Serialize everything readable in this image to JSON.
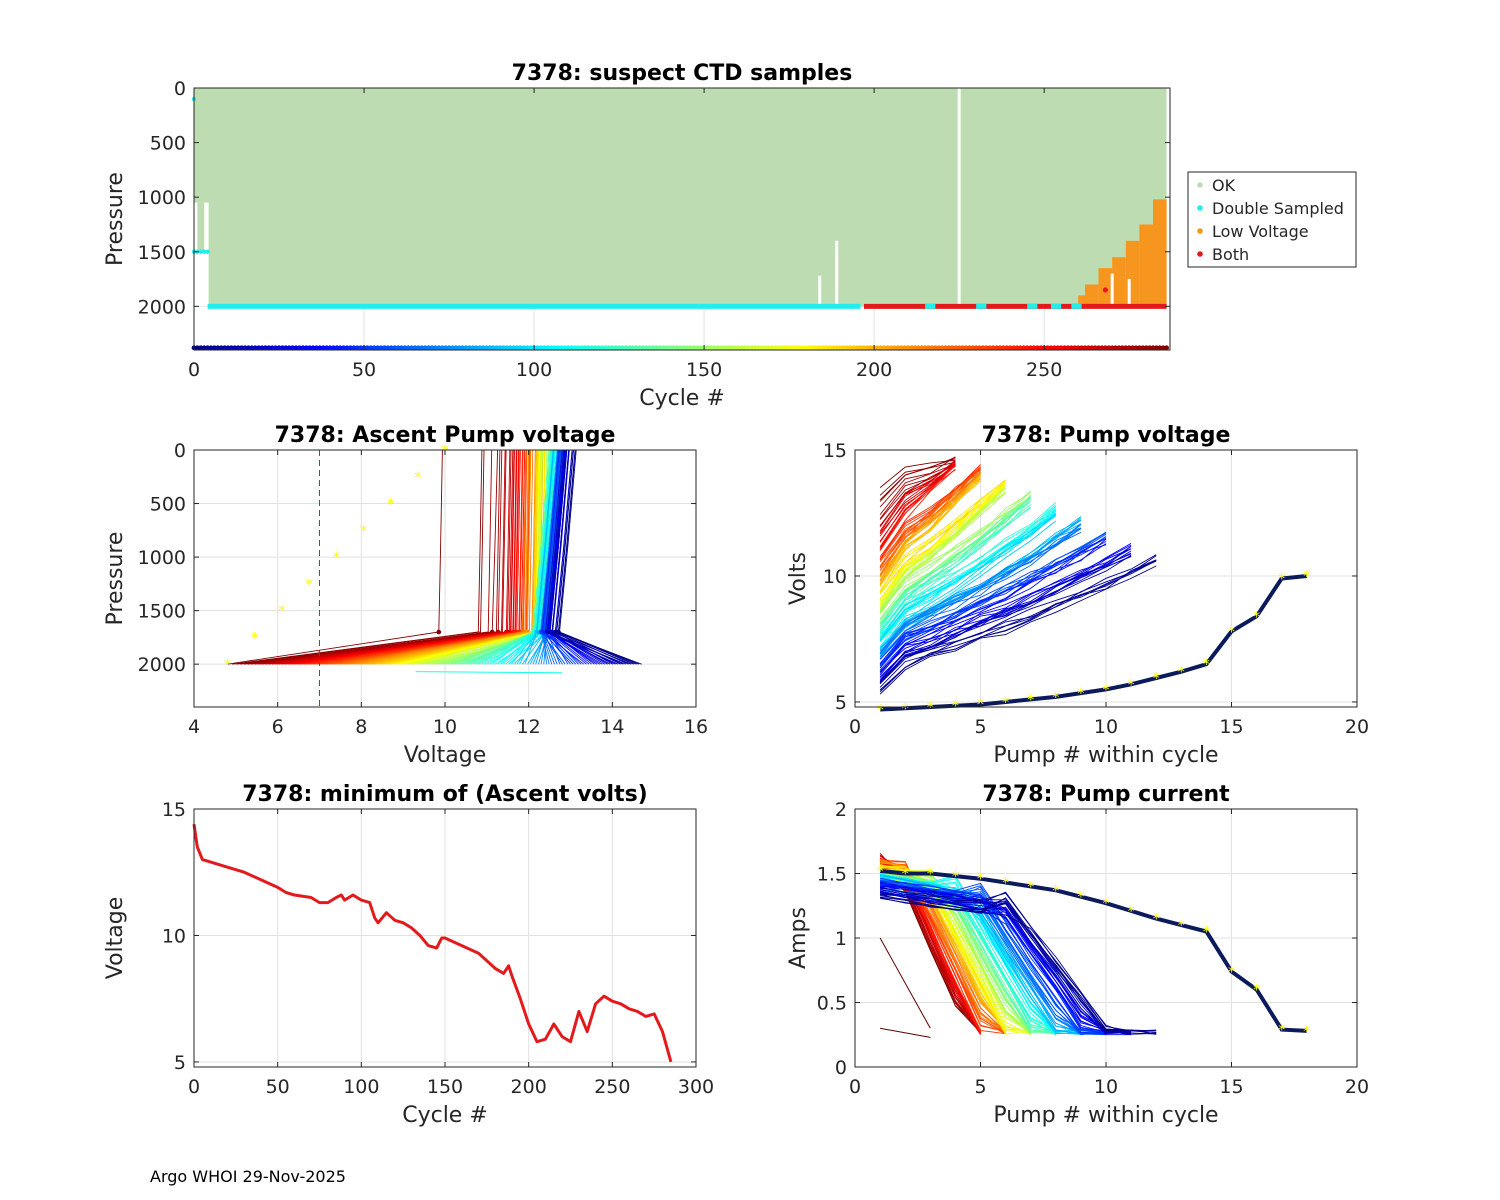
{
  "footer": "Argo WHOI 29-Nov-2025",
  "chart_data": [
    {
      "id": "ctd",
      "type": "scatter",
      "title": "7378: suspect CTD samples",
      "xlabel": "Cycle #",
      "ylabel": "Pressure",
      "xlim": [
        0,
        287
      ],
      "ylim": [
        0,
        2400
      ],
      "y_reversed": true,
      "grid": true,
      "xticks": [
        0,
        50,
        100,
        150,
        200,
        250
      ],
      "yticks": [
        0,
        500,
        1000,
        1500,
        2000
      ],
      "legend": {
        "placement": "right-outside",
        "entries": [
          {
            "label": "OK",
            "color": "#bddcb2"
          },
          {
            "label": "Double Sampled",
            "color": "#22eeee"
          },
          {
            "label": "Low Voltage",
            "color": "#f7961e"
          },
          {
            "label": "Both",
            "color": "#e31a1c"
          }
        ]
      },
      "ok_max_pressure": 2000,
      "gap_cycles": [
        {
          "cycle": 184,
          "top": 1720
        },
        {
          "cycle": 189,
          "top": 1400
        },
        {
          "cycle": 225,
          "top": 0
        }
      ],
      "double_sampled": {
        "shallow_cycles": [
          0,
          1,
          2,
          3,
          4
        ],
        "shallow_pressure": 1500,
        "deep_pressure": 2000,
        "deep_range": [
          4,
          196
        ]
      },
      "both": {
        "range": [
          197,
          286
        ],
        "pressure": 2000
      },
      "low_voltage": {
        "cycles": [
          262,
          266,
          270,
          274,
          278,
          282,
          286
        ],
        "tops": [
          1900,
          1800,
          1650,
          1550,
          1400,
          1250,
          1020
        ]
      },
      "cycle_color_bar_pressure": 2380
    },
    {
      "id": "ascent",
      "type": "line",
      "title": "7378: Ascent Pump voltage",
      "xlabel": "Voltage",
      "ylabel": "Pressure",
      "xlim": [
        4,
        16
      ],
      "ylim": [
        0,
        2400
      ],
      "y_reversed": true,
      "xticks": [
        4,
        6,
        8,
        10,
        12,
        14,
        16
      ],
      "yticks": [
        0,
        500,
        1000,
        1500,
        2000
      ],
      "threshold_voltage": 7,
      "threshold_color": "#e31a1c",
      "curves_count": 287,
      "start_voltage_range": [
        14.7,
        4.8
      ],
      "end_voltage_range": [
        13.0,
        10.0
      ],
      "start_pressure": 2000,
      "end_pressure": 0
    },
    {
      "id": "pumpv",
      "type": "line",
      "title": "7378: Pump voltage",
      "xlabel": "Pump # within cycle",
      "ylabel": "Volts",
      "xlim": [
        0,
        20
      ],
      "ylim": [
        4.8,
        15
      ],
      "xticks": [
        0,
        5,
        10,
        15,
        20
      ],
      "yticks": [
        5,
        10,
        15
      ],
      "highlight_series": {
        "name": "final cycle",
        "pump": [
          1,
          2,
          3,
          4,
          5,
          6,
          7,
          8,
          9,
          10,
          11,
          12,
          13,
          14,
          15,
          16,
          17,
          18
        ],
        "volts": [
          4.7,
          4.75,
          4.8,
          4.85,
          4.9,
          5.0,
          5.1,
          5.2,
          5.35,
          5.5,
          5.7,
          5.95,
          6.2,
          6.5,
          7.8,
          8.4,
          9.9,
          10.0
        ]
      }
    },
    {
      "id": "minvolts",
      "type": "line",
      "title": "7378: minimum of (Ascent volts)",
      "xlabel": "Cycle #",
      "ylabel": "Voltage",
      "xlim": [
        0,
        300
      ],
      "ylim": [
        4.8,
        15
      ],
      "xticks": [
        0,
        50,
        100,
        150,
        200,
        250,
        300
      ],
      "yticks": [
        5,
        10,
        15
      ],
      "color": "#e31a1c",
      "x": [
        0,
        2,
        5,
        10,
        20,
        30,
        40,
        50,
        55,
        60,
        70,
        75,
        80,
        85,
        88,
        90,
        95,
        100,
        105,
        108,
        110,
        115,
        120,
        125,
        130,
        135,
        140,
        145,
        148,
        150,
        160,
        170,
        180,
        185,
        188,
        190,
        195,
        200,
        205,
        210,
        215,
        220,
        225,
        230,
        235,
        240,
        245,
        250,
        255,
        260,
        265,
        270,
        275,
        280,
        285
      ],
      "y": [
        14.4,
        13.5,
        13.0,
        12.9,
        12.7,
        12.5,
        12.2,
        11.9,
        11.7,
        11.6,
        11.5,
        11.3,
        11.3,
        11.5,
        11.6,
        11.4,
        11.6,
        11.4,
        11.3,
        10.7,
        10.5,
        10.9,
        10.6,
        10.5,
        10.3,
        10.0,
        9.6,
        9.5,
        9.9,
        9.9,
        9.6,
        9.3,
        8.7,
        8.5,
        8.8,
        8.4,
        7.5,
        6.5,
        5.8,
        5.9,
        6.5,
        6.0,
        5.8,
        7.0,
        6.2,
        7.3,
        7.6,
        7.4,
        7.3,
        7.1,
        7.0,
        6.8,
        6.9,
        6.2,
        5.0
      ]
    },
    {
      "id": "pumpi",
      "type": "line",
      "title": "7378: Pump current",
      "xlabel": "Pump # within cycle",
      "ylabel": "Amps",
      "xlim": [
        0,
        20
      ],
      "ylim": [
        0,
        2
      ],
      "xticks": [
        0,
        5,
        10,
        15,
        20
      ],
      "yticks": [
        0,
        0.5,
        1,
        1.5,
        2
      ],
      "highlight_series": {
        "name": "final cycle",
        "pump": [
          1,
          2,
          3,
          4,
          5,
          6,
          7,
          8,
          9,
          10,
          11,
          12,
          13,
          14,
          15,
          16,
          17,
          18
        ],
        "amps": [
          1.52,
          1.5,
          1.5,
          1.48,
          1.46,
          1.43,
          1.4,
          1.37,
          1.32,
          1.27,
          1.21,
          1.15,
          1.1,
          1.05,
          0.74,
          0.6,
          0.29,
          0.28
        ]
      }
    }
  ]
}
